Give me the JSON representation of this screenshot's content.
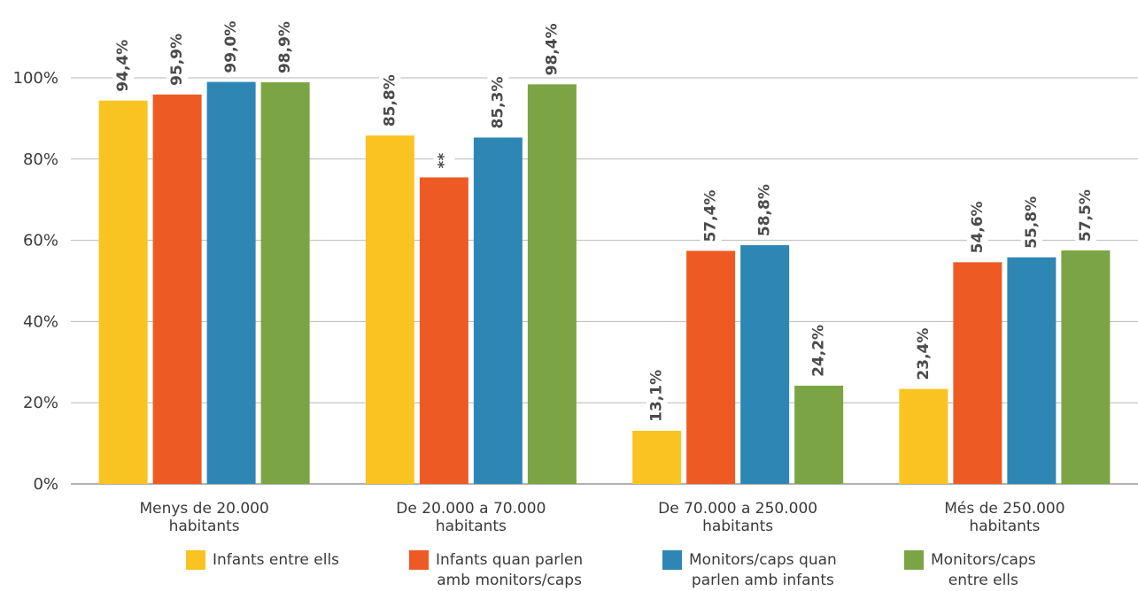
{
  "chart_data": {
    "type": "bar",
    "categories": [
      [
        "Menys de 20.000",
        "habitants"
      ],
      [
        "De 20.000 a 70.000",
        "habitants"
      ],
      [
        "De 70.000 a 250.000",
        "habitants"
      ],
      [
        "Més de 250.000",
        "habitants"
      ]
    ],
    "series": [
      {
        "name": "Infants entre ells",
        "color": "#F9C322",
        "values": [
          94.4,
          85.8,
          13.1,
          23.4
        ],
        "labels": [
          "94,4%",
          "85,8%",
          "13,1%",
          "23,4%"
        ]
      },
      {
        "name": "Infants quan parlen amb monitors/caps",
        "color": "#EE5A24",
        "values": [
          95.9,
          75.5,
          57.4,
          54.6
        ],
        "labels": [
          "95,9%",
          "**",
          "57,4%",
          "54,6%"
        ]
      },
      {
        "name": "Monitors/caps quan parlen amb infants",
        "color": "#2E86B5",
        "values": [
          99.0,
          85.3,
          58.8,
          55.8
        ],
        "labels": [
          "99,0%",
          "85,3%",
          "58,8%",
          "55,8%"
        ]
      },
      {
        "name": "Monitors/caps entre ells",
        "color": "#7BA544",
        "values": [
          98.9,
          98.4,
          24.2,
          57.5
        ],
        "labels": [
          "98,9%",
          "98,4%",
          "24,2%",
          "57,5%"
        ]
      }
    ],
    "yticks": [
      "0%",
      "20%",
      "40%",
      "60%",
      "80%",
      "100%"
    ],
    "ylim": [
      0,
      100
    ],
    "grid": true,
    "legend_position": "bottom"
  },
  "legend": [
    {
      "text": "Infants entre ells",
      "color": "#F9C322"
    },
    {
      "text": "Infants quan parlen\namb monitors/caps",
      "color": "#EE5A24"
    },
    {
      "text": "Monitors/caps quan\nparlen amb infants",
      "color": "#2E86B5"
    },
    {
      "text": "Monitors/caps\nentre ells",
      "color": "#7BA544"
    }
  ]
}
